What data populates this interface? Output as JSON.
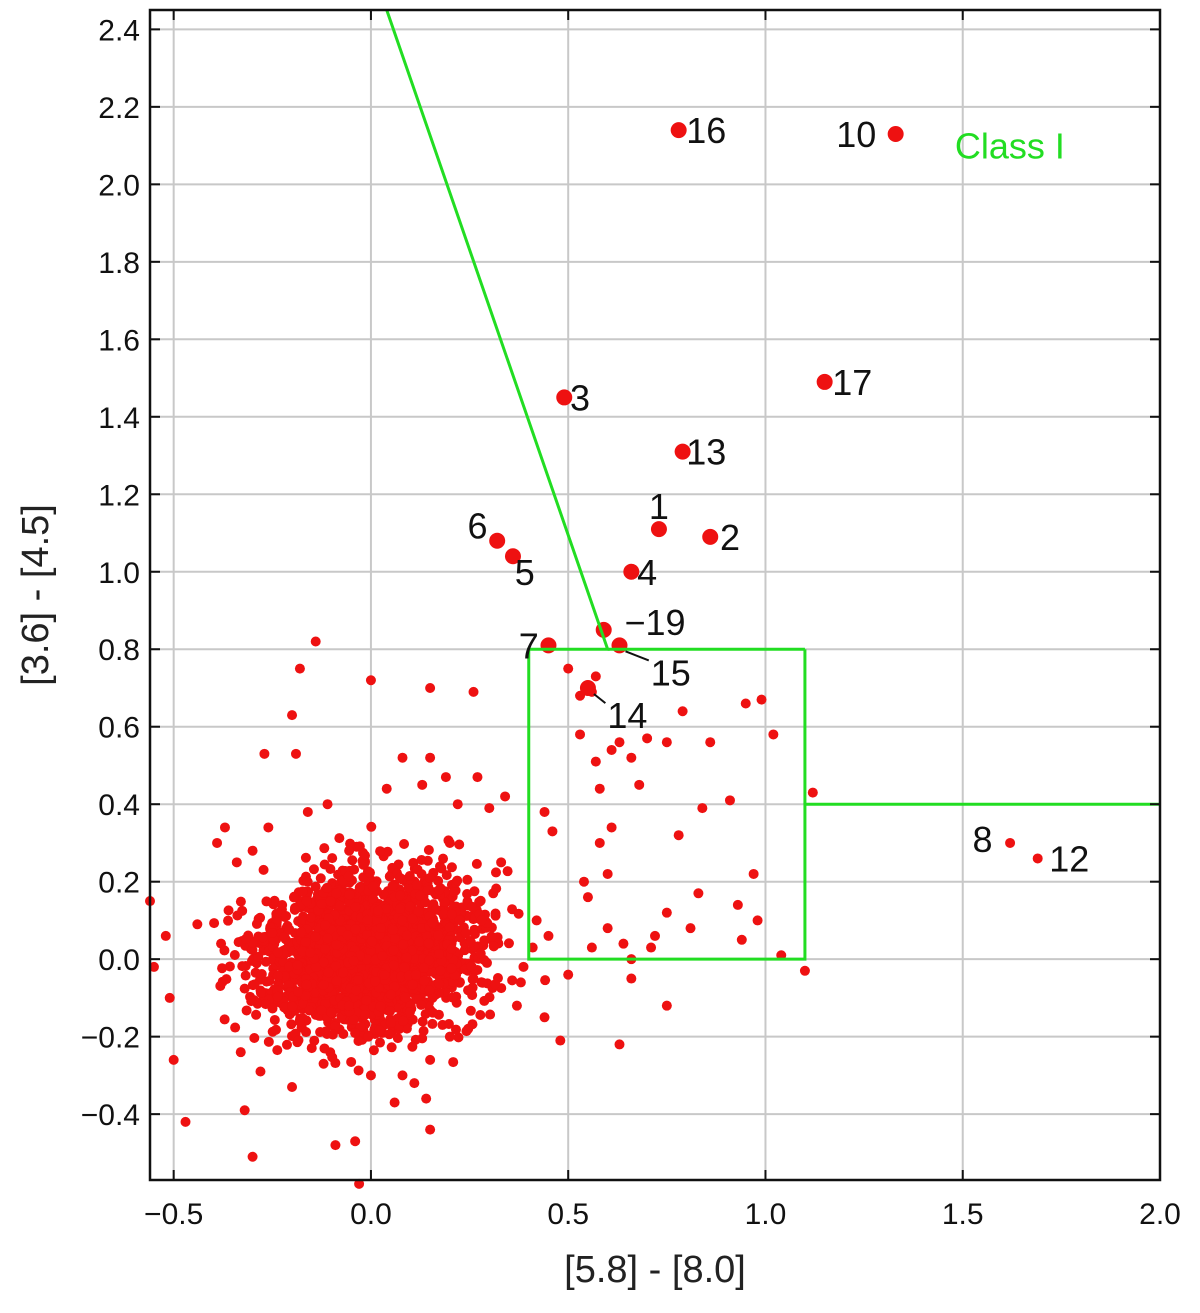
{
  "chart_data": {
    "type": "scatter",
    "xlabel": "[5.8] - [8.0]",
    "ylabel": "[3.6] - [4.5]",
    "xlim": [
      -0.56,
      2.0
    ],
    "ylim": [
      -0.57,
      2.45
    ],
    "grid": true,
    "x_ticks": [
      -0.5,
      0.0,
      0.5,
      1.0,
      1.5,
      2.0
    ],
    "x_tick_labels": [
      "−0.5",
      "0.0",
      "0.5",
      "1.0",
      "1.5",
      "2.0"
    ],
    "y_ticks": [
      -0.4,
      -0.2,
      0.0,
      0.2,
      0.4,
      0.6,
      0.8,
      1.0,
      1.2,
      1.4,
      1.6,
      1.8,
      2.0,
      2.2,
      2.4
    ],
    "y_tick_labels": [
      "−0.4",
      "−0.2",
      "0.0",
      "0.2",
      "0.4",
      "0.6",
      "0.8",
      "1.0",
      "1.2",
      "1.4",
      "1.6",
      "1.8",
      "2.0",
      "2.2",
      "2.4"
    ],
    "colors": {
      "points": "#ee1111",
      "regions": "#22dd22",
      "grid": "#c8c8c8",
      "axes": "#111111"
    },
    "regions": [
      {
        "label": "Class I",
        "label_at": [
          1.48,
          2.1
        ],
        "polyline": [
          [
            0.04,
            2.45
          ],
          [
            0.6,
            0.8
          ],
          [
            0.4,
            0.8
          ],
          [
            0.4,
            0.0
          ],
          [
            1.1,
            0.0
          ],
          [
            1.1,
            0.4
          ],
          [
            2.0,
            0.4
          ]
        ]
      },
      {
        "label": "",
        "polyline": [
          [
            1.1,
            0.8
          ],
          [
            1.1,
            0.4
          ]
        ]
      },
      {
        "label": "",
        "polyline": [
          [
            0.6,
            0.8
          ],
          [
            1.1,
            0.8
          ]
        ]
      }
    ],
    "labeled_points": [
      {
        "label": "1",
        "x": 0.73,
        "y": 1.11,
        "label_at": [
          0.73,
          1.17
        ]
      },
      {
        "label": "2",
        "x": 0.86,
        "y": 1.09,
        "label_at": [
          0.91,
          1.09
        ]
      },
      {
        "label": "3",
        "x": 0.49,
        "y": 1.45,
        "label_at": [
          0.53,
          1.45
        ]
      },
      {
        "label": "4",
        "x": 0.66,
        "y": 1.0,
        "label_at": [
          0.7,
          1.0
        ]
      },
      {
        "label": "5",
        "x": 0.36,
        "y": 1.04,
        "label_at": [
          0.39,
          1.0
        ]
      },
      {
        "label": "6",
        "x": 0.32,
        "y": 1.08,
        "label_at": [
          0.27,
          1.12
        ]
      },
      {
        "label": "7",
        "x": 0.45,
        "y": 0.81,
        "label_at": [
          0.4,
          0.81
        ]
      },
      {
        "label": "8",
        "x": 1.62,
        "y": 0.3,
        "label_at": [
          1.55,
          0.31
        ]
      },
      {
        "label": "10",
        "x": 1.33,
        "y": 2.13,
        "label_at": [
          1.23,
          2.13
        ]
      },
      {
        "label": "12",
        "x": 1.69,
        "y": 0.26,
        "label_at": [
          1.77,
          0.26
        ]
      },
      {
        "label": "13",
        "x": 0.79,
        "y": 1.31,
        "label_at": [
          0.85,
          1.31
        ]
      },
      {
        "label": "14",
        "x": 0.55,
        "y": 0.7,
        "label_at": [
          0.65,
          0.63
        ],
        "leader": true
      },
      {
        "label": "15",
        "x": 0.63,
        "y": 0.81,
        "label_at": [
          0.76,
          0.74
        ],
        "leader": true
      },
      {
        "label": "16",
        "x": 0.78,
        "y": 2.14,
        "label_at": [
          0.85,
          2.14
        ]
      },
      {
        "label": "17",
        "x": 1.15,
        "y": 1.49,
        "label_at": [
          1.22,
          1.49
        ]
      },
      {
        "label": "−19",
        "x": 0.59,
        "y": 0.85,
        "label_at": [
          0.72,
          0.87
        ]
      }
    ],
    "scattered_points": [
      [
        -0.14,
        0.82
      ],
      [
        -0.18,
        0.75
      ],
      [
        0.0,
        0.72
      ],
      [
        0.15,
        0.7
      ],
      [
        0.26,
        0.69
      ],
      [
        -0.2,
        0.63
      ],
      [
        -0.27,
        0.53
      ],
      [
        -0.19,
        0.53
      ],
      [
        0.08,
        0.52
      ],
      [
        0.15,
        0.52
      ],
      [
        0.5,
        0.75
      ],
      [
        0.53,
        0.68
      ],
      [
        0.57,
        0.73
      ],
      [
        0.56,
        0.69
      ],
      [
        0.53,
        0.58
      ],
      [
        0.63,
        0.56
      ],
      [
        0.61,
        0.54
      ],
      [
        0.7,
        0.57
      ],
      [
        0.75,
        0.56
      ],
      [
        0.79,
        0.64
      ],
      [
        0.86,
        0.56
      ],
      [
        0.95,
        0.66
      ],
      [
        0.99,
        0.67
      ],
      [
        1.02,
        0.58
      ],
      [
        0.57,
        0.51
      ],
      [
        0.58,
        0.44
      ],
      [
        0.66,
        0.52
      ],
      [
        0.68,
        0.45
      ],
      [
        0.84,
        0.39
      ],
      [
        0.91,
        0.41
      ],
      [
        1.12,
        0.43
      ],
      [
        0.78,
        0.32
      ],
      [
        0.83,
        0.17
      ],
      [
        0.75,
        0.12
      ],
      [
        0.97,
        0.22
      ],
      [
        0.93,
        0.14
      ],
      [
        0.98,
        0.1
      ],
      [
        0.94,
        0.05
      ],
      [
        0.81,
        0.08
      ],
      [
        0.72,
        0.06
      ],
      [
        0.64,
        0.04
      ],
      [
        0.71,
        0.03
      ],
      [
        0.66,
        0.0
      ],
      [
        0.66,
        -0.05
      ],
      [
        0.75,
        -0.12
      ],
      [
        1.04,
        0.01
      ],
      [
        1.1,
        -0.03
      ],
      [
        0.63,
        -0.22
      ],
      [
        0.48,
        -0.21
      ],
      [
        0.44,
        -0.15
      ],
      [
        0.5,
        -0.04
      ],
      [
        0.56,
        0.03
      ],
      [
        0.6,
        0.08
      ],
      [
        0.55,
        0.16
      ],
      [
        0.6,
        0.22
      ],
      [
        0.58,
        0.3
      ],
      [
        0.61,
        0.34
      ],
      [
        0.54,
        0.2
      ],
      [
        0.46,
        0.33
      ],
      [
        0.44,
        0.38
      ],
      [
        0.34,
        0.42
      ],
      [
        0.27,
        0.47
      ],
      [
        0.3,
        0.39
      ],
      [
        0.22,
        0.4
      ],
      [
        0.42,
        0.1
      ],
      [
        0.45,
        0.06
      ],
      [
        0.41,
        0.03
      ],
      [
        0.38,
        -0.06
      ],
      [
        0.37,
        -0.12
      ],
      [
        0.15,
        -0.26
      ],
      [
        0.14,
        -0.36
      ],
      [
        0.06,
        -0.37
      ],
      [
        0.15,
        -0.44
      ],
      [
        -0.04,
        -0.47
      ],
      [
        -0.09,
        -0.48
      ],
      [
        -0.32,
        -0.39
      ],
      [
        -0.3,
        -0.51
      ],
      [
        -0.47,
        -0.42
      ],
      [
        -0.03,
        -0.58
      ],
      [
        -0.5,
        -0.26
      ],
      [
        -0.51,
        -0.1
      ],
      [
        -0.55,
        -0.02
      ],
      [
        -0.52,
        0.06
      ],
      [
        -0.56,
        0.15
      ],
      [
        -0.44,
        0.09
      ],
      [
        -0.39,
        0.3
      ],
      [
        -0.37,
        0.34
      ],
      [
        -0.34,
        0.25
      ],
      [
        -0.3,
        0.28
      ],
      [
        -0.26,
        0.34
      ],
      [
        -0.16,
        0.38
      ],
      [
        -0.11,
        0.4
      ],
      [
        0.04,
        0.44
      ],
      [
        0.13,
        0.45
      ],
      [
        0.19,
        0.47
      ],
      [
        -0.33,
        -0.24
      ],
      [
        -0.28,
        -0.29
      ],
      [
        -0.2,
        -0.33
      ],
      [
        0.0,
        -0.3
      ],
      [
        0.08,
        -0.3
      ],
      [
        0.2,
        -0.2
      ],
      [
        0.26,
        -0.05
      ],
      [
        0.28,
        0.1
      ],
      [
        0.31,
        0.17
      ],
      [
        0.33,
        0.25
      ],
      [
        0.2,
        0.3
      ],
      [
        -0.12,
        -0.27
      ],
      [
        0.11,
        -0.32
      ]
    ],
    "cluster": {
      "center": [
        0.0,
        0.02
      ],
      "spread": [
        0.14,
        0.1
      ],
      "count": 2200
    }
  }
}
